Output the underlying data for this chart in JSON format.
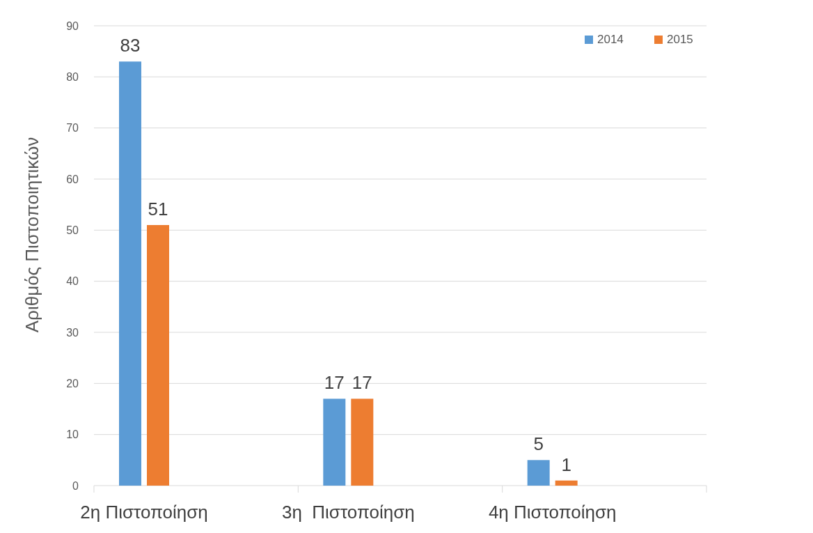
{
  "chart_data": {
    "type": "bar",
    "ylabel": "Αριθμός Πιστοποιητικών",
    "categories": [
      "2η Πιστοποίηση",
      "3η  Πιστοποίηση",
      "4η Πιστοποίηση"
    ],
    "series": [
      {
        "name": "2014",
        "color": "#5b9bd5",
        "values": [
          83,
          17,
          5
        ]
      },
      {
        "name": "2015",
        "color": "#ed7d31",
        "values": [
          51,
          17,
          1
        ]
      }
    ],
    "ylim": [
      0,
      90
    ],
    "yticks": [
      0,
      10,
      20,
      30,
      40,
      50,
      60,
      70,
      80,
      90
    ],
    "grid": "y",
    "legend": "top right",
    "data_labels": true
  }
}
